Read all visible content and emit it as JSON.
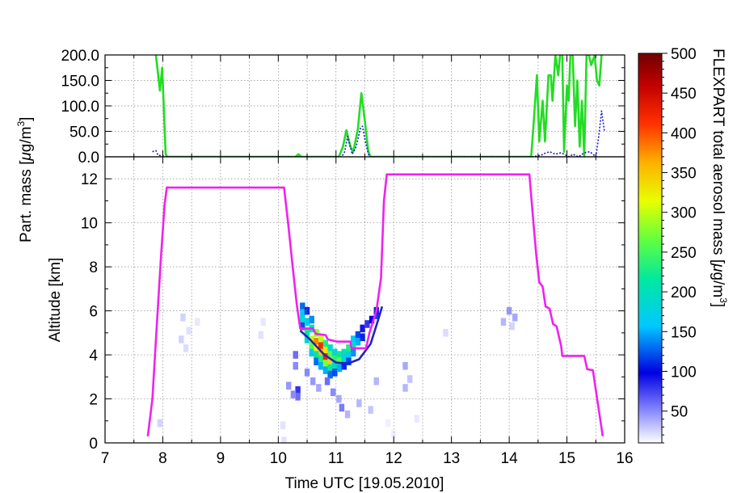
{
  "chart_data": [
    {
      "type": "line",
      "ylabel": "Part. mass [μg/m³]",
      "ylabel_parts": {
        "main": "Part. mass [",
        "mu": "μ",
        "g": "g/m",
        "exp": "3",
        "close": "]"
      },
      "xlim": [
        7,
        16
      ],
      "ylim": [
        0,
        200
      ],
      "ytick_labels": [
        "0.0",
        "50.0",
        "100.0",
        "150.0",
        "200.0"
      ],
      "ytick_values": [
        0,
        50,
        100,
        150,
        200
      ],
      "grid": true,
      "series": [
        {
          "color": "#22dd22",
          "style": "solid",
          "points": [
            [
              7.88,
              200
            ],
            [
              7.95,
              130
            ],
            [
              7.99,
              175
            ],
            [
              8.03,
              60
            ],
            [
              8.05,
              5
            ],
            [
              8.08,
              0
            ],
            [
              8.3,
              0
            ],
            [
              9.0,
              0
            ],
            [
              10.3,
              0
            ],
            [
              10.35,
              5
            ],
            [
              10.4,
              0
            ],
            [
              11.05,
              0
            ],
            [
              11.12,
              20
            ],
            [
              11.18,
              52
            ],
            [
              11.25,
              20
            ],
            [
              11.3,
              10
            ],
            [
              11.38,
              55
            ],
            [
              11.44,
              125
            ],
            [
              11.5,
              70
            ],
            [
              11.56,
              10
            ],
            [
              11.6,
              0
            ],
            [
              12.2,
              0
            ],
            [
              14.38,
              0
            ],
            [
              14.42,
              60
            ],
            [
              14.48,
              160
            ],
            [
              14.52,
              30
            ],
            [
              14.58,
              110
            ],
            [
              14.62,
              30
            ],
            [
              14.68,
              160
            ],
            [
              14.72,
              160
            ],
            [
              14.75,
              110
            ],
            [
              14.8,
              200
            ],
            [
              14.85,
              160
            ],
            [
              14.88,
              200
            ],
            [
              14.92,
              200
            ],
            [
              14.95,
              10
            ],
            [
              15.0,
              140
            ],
            [
              15.03,
              110
            ],
            [
              15.06,
              200
            ],
            [
              15.1,
              200
            ],
            [
              15.14,
              60
            ],
            [
              15.18,
              150
            ],
            [
              15.22,
              20
            ],
            [
              15.26,
              110
            ],
            [
              15.3,
              0
            ],
            [
              15.34,
              200
            ],
            [
              15.38,
              200
            ],
            [
              15.42,
              180
            ],
            [
              15.48,
              200
            ],
            [
              15.52,
              150
            ],
            [
              15.56,
              140
            ],
            [
              15.6,
              200
            ]
          ]
        },
        {
          "color": "#1a1acc",
          "style": "dotted",
          "points": [
            [
              7.82,
              10
            ],
            [
              7.88,
              12
            ],
            [
              7.92,
              3
            ],
            [
              8.0,
              2
            ],
            [
              8.05,
              0
            ],
            [
              9.0,
              0
            ],
            [
              11.1,
              0
            ],
            [
              11.15,
              10
            ],
            [
              11.2,
              40
            ],
            [
              11.28,
              5
            ],
            [
              11.35,
              20
            ],
            [
              11.42,
              55
            ],
            [
              11.46,
              60
            ],
            [
              11.5,
              35
            ],
            [
              11.56,
              5
            ],
            [
              11.6,
              0
            ],
            [
              14.4,
              0
            ],
            [
              14.55,
              3
            ],
            [
              14.6,
              6
            ],
            [
              14.7,
              10
            ],
            [
              14.8,
              5
            ],
            [
              14.9,
              8
            ],
            [
              15.0,
              2
            ],
            [
              15.05,
              0
            ],
            [
              15.1,
              5
            ],
            [
              15.2,
              0
            ],
            [
              15.3,
              8
            ],
            [
              15.4,
              10
            ],
            [
              15.5,
              0
            ],
            [
              15.55,
              40
            ],
            [
              15.6,
              90
            ],
            [
              15.65,
              50
            ]
          ]
        }
      ]
    },
    {
      "type": "heatmap",
      "xlabel": "Time UTC [19.05.2010]",
      "ylabel": "Altitude [km]",
      "xlim": [
        7,
        16
      ],
      "ylim": [
        0,
        13
      ],
      "xtick_labels": [
        "7",
        "8",
        "9",
        "10",
        "11",
        "12",
        "13",
        "14",
        "15",
        "16"
      ],
      "xtick_values": [
        7,
        8,
        9,
        10,
        11,
        12,
        13,
        14,
        15,
        16
      ],
      "ytick_labels": [
        "0",
        "2",
        "4",
        "6",
        "8",
        "10",
        "12"
      ],
      "ytick_values": [
        0,
        2,
        4,
        6,
        8,
        10,
        12
      ],
      "grid": true,
      "colorbar": {
        "label": "FLEXPART total aerosol mass [μg/m³]",
        "label_parts": {
          "main": "FLEXPART total aerosol mass [",
          "mu": "μ",
          "g": "g/m",
          "exp": "3",
          "close": "]"
        },
        "tick_labels": [
          "50",
          "100",
          "150",
          "200",
          "250",
          "300",
          "350",
          "400",
          "450",
          "500"
        ],
        "tick_values": [
          50,
          100,
          150,
          200,
          250,
          300,
          350,
          400,
          450,
          500
        ],
        "min": 10,
        "max": 500
      },
      "cells": [
        [
          10.42,
          6.2,
          130
        ],
        [
          10.42,
          5.9,
          160
        ],
        [
          10.42,
          5.6,
          190
        ],
        [
          10.42,
          5.3,
          120
        ],
        [
          10.5,
          6.0,
          110
        ],
        [
          10.5,
          5.5,
          170
        ],
        [
          10.5,
          5.0,
          220
        ],
        [
          10.5,
          4.7,
          180
        ],
        [
          10.58,
          5.6,
          140
        ],
        [
          10.58,
          5.2,
          200
        ],
        [
          10.58,
          4.7,
          300
        ],
        [
          10.58,
          4.4,
          260
        ],
        [
          10.58,
          4.1,
          160
        ],
        [
          10.66,
          5.0,
          280
        ],
        [
          10.66,
          4.6,
          380
        ],
        [
          10.66,
          4.3,
          320
        ],
        [
          10.66,
          4.0,
          210
        ],
        [
          10.66,
          3.7,
          130
        ],
        [
          10.74,
          4.7,
          300
        ],
        [
          10.74,
          4.4,
          420
        ],
        [
          10.74,
          4.1,
          350
        ],
        [
          10.74,
          3.8,
          230
        ],
        [
          10.74,
          3.5,
          150
        ],
        [
          10.82,
          4.5,
          230
        ],
        [
          10.82,
          4.2,
          330
        ],
        [
          10.82,
          3.9,
          420
        ],
        [
          10.82,
          3.6,
          280
        ],
        [
          10.82,
          3.3,
          150
        ],
        [
          10.9,
          4.3,
          190
        ],
        [
          10.9,
          4.0,
          260
        ],
        [
          10.9,
          3.7,
          340
        ],
        [
          10.9,
          3.4,
          220
        ],
        [
          10.9,
          3.1,
          130
        ],
        [
          10.98,
          4.1,
          180
        ],
        [
          10.98,
          3.8,
          240
        ],
        [
          10.98,
          3.5,
          190
        ],
        [
          10.98,
          3.2,
          120
        ],
        [
          11.06,
          4.0,
          220
        ],
        [
          11.06,
          3.7,
          260
        ],
        [
          11.06,
          3.4,
          150
        ],
        [
          11.14,
          4.1,
          200
        ],
        [
          11.14,
          3.8,
          180
        ],
        [
          11.14,
          3.5,
          110
        ],
        [
          11.22,
          4.3,
          230
        ],
        [
          11.22,
          4.0,
          170
        ],
        [
          11.22,
          3.7,
          120
        ],
        [
          11.3,
          4.7,
          160
        ],
        [
          11.3,
          4.4,
          200
        ],
        [
          11.3,
          4.1,
          140
        ],
        [
          11.38,
          4.9,
          120
        ],
        [
          11.38,
          4.6,
          150
        ],
        [
          11.46,
          5.2,
          90
        ],
        [
          11.46,
          4.8,
          110
        ],
        [
          11.54,
          5.4,
          80
        ],
        [
          11.62,
          5.6,
          100
        ],
        [
          11.7,
          5.8,
          120
        ],
        [
          11.7,
          6.0,
          90
        ],
        [
          10.3,
          4.0,
          60
        ],
        [
          10.3,
          3.5,
          50
        ],
        [
          10.34,
          2.4,
          80
        ],
        [
          10.34,
          2.1,
          60
        ],
        [
          10.26,
          2.2,
          50
        ],
        [
          10.18,
          2.6,
          45
        ],
        [
          10.5,
          3.2,
          50
        ],
        [
          10.6,
          2.8,
          45
        ],
        [
          10.7,
          2.5,
          40
        ],
        [
          10.85,
          2.8,
          60
        ],
        [
          10.95,
          2.3,
          50
        ],
        [
          11.05,
          2.0,
          40
        ],
        [
          11.1,
          1.6,
          55
        ],
        [
          11.2,
          1.3,
          35
        ],
        [
          11.4,
          1.8,
          35
        ],
        [
          11.6,
          1.5,
          30
        ],
        [
          11.7,
          2.8,
          35
        ],
        [
          12.2,
          3.5,
          40
        ],
        [
          12.2,
          2.5,
          35
        ],
        [
          12.28,
          2.9,
          30
        ],
        [
          8.32,
          4.7,
          25
        ],
        [
          8.35,
          5.7,
          25
        ],
        [
          8.4,
          4.3,
          22
        ],
        [
          8.45,
          5.1,
          20
        ],
        [
          8.6,
          5.5,
          18
        ],
        [
          9.7,
          4.9,
          20
        ],
        [
          9.74,
          5.5,
          18
        ],
        [
          12.9,
          5.0,
          22
        ],
        [
          14.0,
          6.0,
          45
        ],
        [
          14.1,
          5.7,
          40
        ],
        [
          13.9,
          5.5,
          35
        ],
        [
          14.05,
          5.3,
          25
        ],
        [
          7.95,
          0.9,
          25
        ],
        [
          10.08,
          0.8,
          20
        ],
        [
          12.4,
          1.1,
          18
        ],
        [
          11.9,
          0.9,
          15
        ],
        [
          12.0,
          0.4,
          15
        ],
        [
          10.1,
          0.1,
          20
        ]
      ],
      "series": [
        {
          "color": "#ee22ee",
          "style": "solid",
          "points": [
            [
              7.74,
              0.3
            ],
            [
              7.82,
              2.0
            ],
            [
              7.9,
              5.5
            ],
            [
              7.97,
              8.5
            ],
            [
              8.03,
              10.8
            ],
            [
              8.07,
              11.6
            ],
            [
              10.1,
              11.6
            ],
            [
              10.17,
              10.0
            ],
            [
              10.25,
              8.0
            ],
            [
              10.32,
              6.3
            ],
            [
              10.38,
              5.2
            ],
            [
              10.6,
              5.2
            ],
            [
              10.65,
              4.95
            ],
            [
              10.82,
              4.9
            ],
            [
              10.86,
              4.7
            ],
            [
              11.02,
              4.6
            ],
            [
              11.25,
              4.6
            ],
            [
              11.27,
              4.3
            ],
            [
              11.52,
              4.3
            ],
            [
              11.58,
              5.0
            ],
            [
              11.7,
              6.0
            ],
            [
              11.78,
              7.5
            ],
            [
              11.83,
              11.0
            ],
            [
              11.88,
              12.2
            ],
            [
              14.35,
              12.2
            ],
            [
              14.42,
              10.0
            ],
            [
              14.47,
              8.5
            ],
            [
              14.52,
              7.3
            ],
            [
              14.58,
              7.1
            ],
            [
              14.63,
              6.2
            ],
            [
              14.7,
              6.1
            ],
            [
              14.76,
              5.4
            ],
            [
              14.82,
              5.3
            ],
            [
              14.9,
              4.4
            ],
            [
              14.92,
              3.95
            ],
            [
              15.3,
              3.95
            ],
            [
              15.35,
              3.35
            ],
            [
              15.45,
              3.3
            ],
            [
              15.5,
              2.4
            ],
            [
              15.62,
              0.3
            ]
          ]
        },
        {
          "color": "#2222bb",
          "style": "solid",
          "points": [
            [
              10.38,
              5.1
            ],
            [
              10.55,
              4.7
            ],
            [
              10.8,
              4.0
            ],
            [
              11.0,
              3.65
            ],
            [
              11.2,
              3.6
            ],
            [
              11.4,
              3.8
            ],
            [
              11.6,
              4.5
            ],
            [
              11.72,
              5.5
            ],
            [
              11.8,
              6.2
            ]
          ]
        }
      ]
    }
  ]
}
